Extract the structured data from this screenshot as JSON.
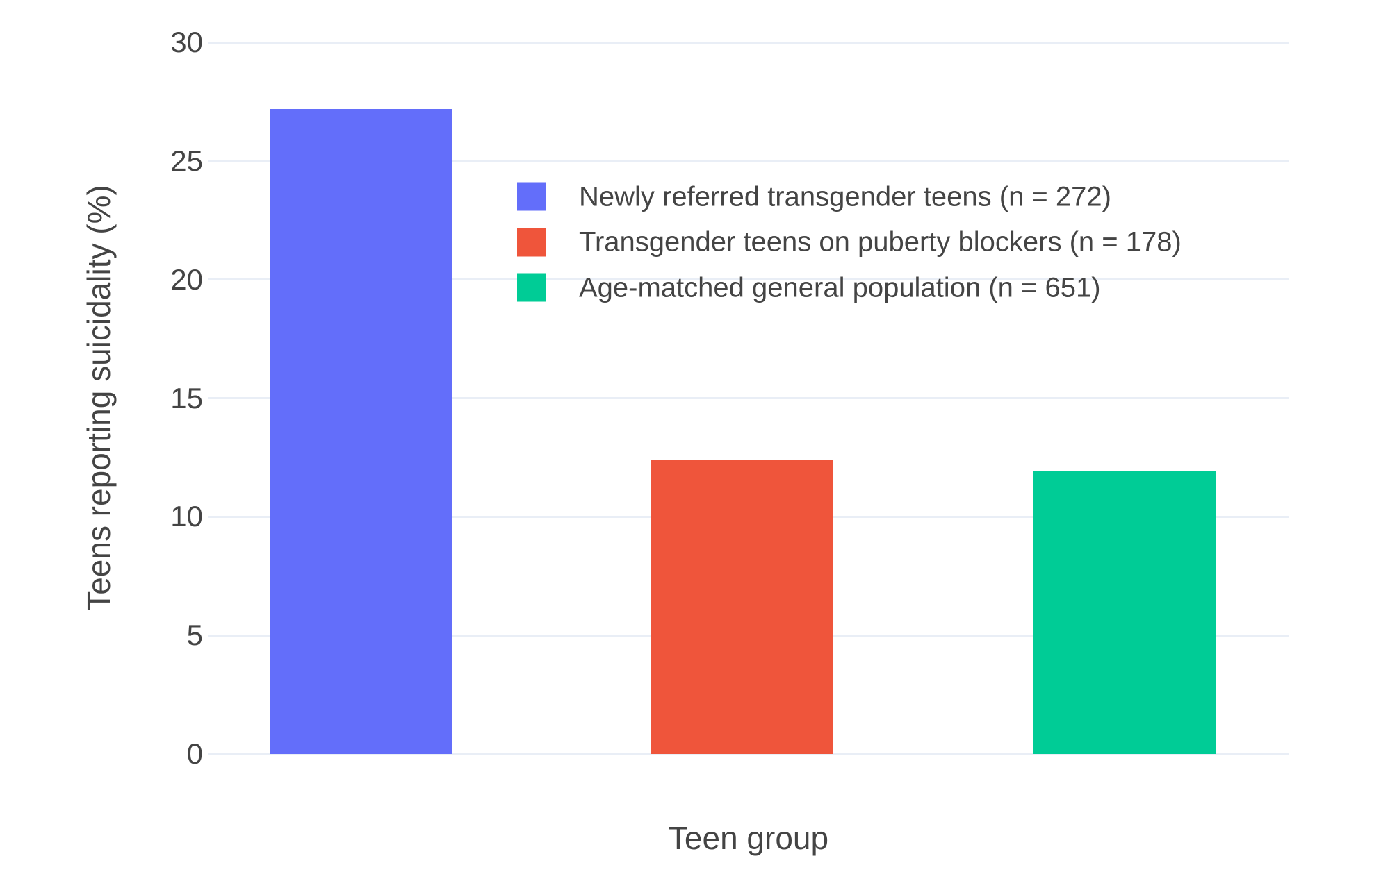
{
  "chart_data": {
    "type": "bar",
    "title": "",
    "xlabel": "Teen group",
    "ylabel": "Teens reporting suicidality (%)",
    "categories": [
      "Newly referred transgender teens (n = 272)",
      "Transgender teens on puberty blockers (n = 178)",
      "Age-matched general population (n = 651)"
    ],
    "values": [
      27.2,
      12.4,
      11.9
    ],
    "sample_sizes": [
      272,
      178,
      651
    ],
    "colors": [
      "#636EFA",
      "#EF553B",
      "#00CC96"
    ],
    "ylim": [
      0,
      30
    ],
    "yticks": [
      0,
      5,
      10,
      15,
      20,
      25,
      30
    ],
    "grid": true,
    "gridline_color": "#e9eef6",
    "text_color": "#444444",
    "background_color": "#ffffff",
    "legend_position": "inside-upper-center",
    "legend": [
      {
        "label": "Newly referred transgender teens (n = 272)",
        "color": "#636EFA"
      },
      {
        "label": "Transgender teens on puberty blockers (n = 178)",
        "color": "#EF553B"
      },
      {
        "label": "Age-matched general population (n = 651)",
        "color": "#00CC96"
      }
    ]
  }
}
